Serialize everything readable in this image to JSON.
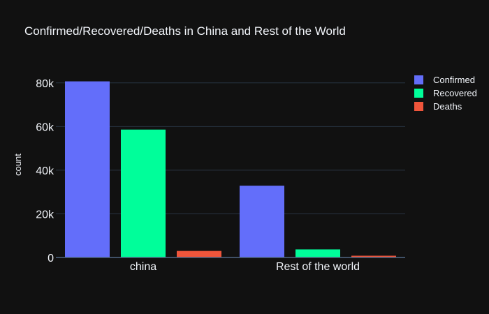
{
  "chart_data": {
    "type": "bar",
    "title": "Confirmed/Recovered/Deaths in China and Rest of the World",
    "xlabel": "",
    "ylabel": "count",
    "categories": [
      "china",
      "Rest of the world"
    ],
    "series": [
      {
        "name": "Confirmed",
        "color": "#636efa",
        "values": [
          80700,
          32900
        ]
      },
      {
        "name": "Recovered",
        "color": "#00fe9a",
        "values": [
          58600,
          3700
        ]
      },
      {
        "name": "Deaths",
        "color": "#ef553b",
        "values": [
          3000,
          800
        ]
      }
    ],
    "ylim": [
      0,
      86000
    ],
    "yticks": [
      0,
      20000,
      40000,
      60000,
      80000
    ],
    "ytick_labels": [
      "0",
      "20k",
      "40k",
      "60k",
      "80k"
    ],
    "grid": true,
    "legend_position": "top-right",
    "colors": {
      "background": "#111111",
      "grid": "#283442",
      "text": "#f2f5fa"
    }
  }
}
